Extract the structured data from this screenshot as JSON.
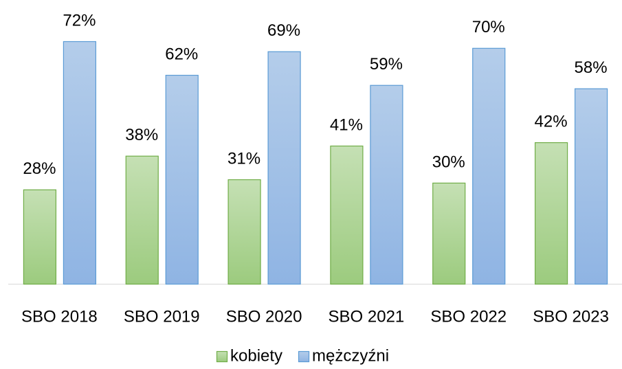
{
  "chart_data": {
    "type": "bar",
    "categories": [
      "SBO 2018",
      "SBO 2019",
      "SBO 2020",
      "SBO 2021",
      "SBO 2022",
      "SBO 2023"
    ],
    "series": [
      {
        "name": "kobiety",
        "color": "#70ad47",
        "values": [
          28,
          38,
          31,
          41,
          30,
          42
        ],
        "value_labels": [
          "28%",
          "38%",
          "31%",
          "41%",
          "30%",
          "42%"
        ]
      },
      {
        "name": "mężczyźni",
        "color": "#5b9bd5",
        "values": [
          72,
          62,
          69,
          59,
          70,
          58
        ],
        "value_labels": [
          "72%",
          "62%",
          "69%",
          "59%",
          "70%",
          "58%"
        ]
      }
    ],
    "legend": "bottom"
  }
}
